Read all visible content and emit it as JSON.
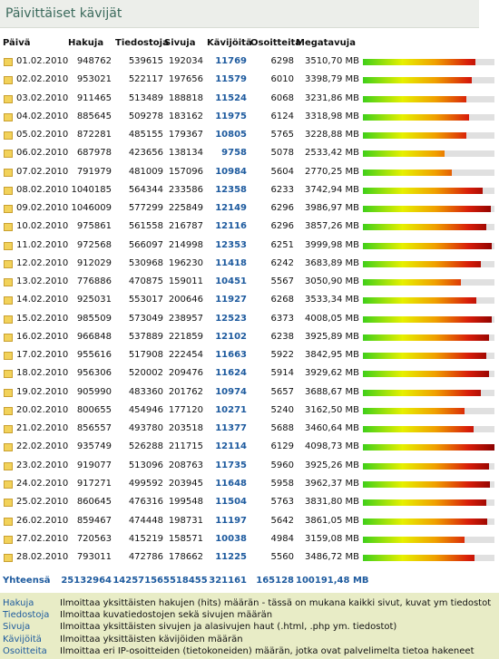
{
  "title": "Päivittäiset kävijät",
  "table": {
    "headers": [
      "Päivä",
      "Hakuja",
      "Tiedostoja",
      "Sivuja",
      "Kävijöitä",
      "Osoitteita",
      "Megatavuja"
    ],
    "rows": [
      [
        "01.02.2010",
        948762,
        539615,
        192034,
        11769,
        6298,
        "3510,70 MB"
      ],
      [
        "02.02.2010",
        953021,
        522117,
        197656,
        11579,
        6010,
        "3398,79 MB"
      ],
      [
        "03.02.2010",
        911465,
        513489,
        188818,
        11524,
        6068,
        "3231,86 MB"
      ],
      [
        "04.02.2010",
        885645,
        509278,
        183162,
        11975,
        6124,
        "3318,98 MB"
      ],
      [
        "05.02.2010",
        872281,
        485155,
        179367,
        10805,
        5765,
        "3228,88 MB"
      ],
      [
        "06.02.2010",
        687978,
        423656,
        138134,
        9758,
        5078,
        "2533,42 MB"
      ],
      [
        "07.02.2010",
        791979,
        481009,
        157096,
        10984,
        5604,
        "2770,25 MB"
      ],
      [
        "08.02.2010",
        1040185,
        564344,
        233586,
        12358,
        6233,
        "3742,94 MB"
      ],
      [
        "09.02.2010",
        1046009,
        577299,
        225849,
        12149,
        6296,
        "3986,97 MB"
      ],
      [
        "10.02.2010",
        975861,
        561558,
        216787,
        12116,
        6296,
        "3857,26 MB"
      ],
      [
        "11.02.2010",
        972568,
        566097,
        214998,
        12353,
        6251,
        "3999,98 MB"
      ],
      [
        "12.02.2010",
        912029,
        530968,
        196230,
        11418,
        6242,
        "3683,89 MB"
      ],
      [
        "13.02.2010",
        776886,
        470875,
        159011,
        10451,
        5567,
        "3050,90 MB"
      ],
      [
        "14.02.2010",
        925031,
        553017,
        200646,
        11927,
        6268,
        "3533,34 MB"
      ],
      [
        "15.02.2010",
        985509,
        573049,
        238957,
        12523,
        6373,
        "4008,05 MB"
      ],
      [
        "16.02.2010",
        966848,
        537889,
        221859,
        12102,
        6238,
        "3925,89 MB"
      ],
      [
        "17.02.2010",
        955616,
        517908,
        222454,
        11663,
        5922,
        "3842,95 MB"
      ],
      [
        "18.02.2010",
        956306,
        520002,
        209476,
        11624,
        5914,
        "3929,62 MB"
      ],
      [
        "19.02.2010",
        905990,
        483360,
        201762,
        10974,
        5657,
        "3688,67 MB"
      ],
      [
        "20.02.2010",
        800655,
        454946,
        177120,
        10271,
        5240,
        "3162,50 MB"
      ],
      [
        "21.02.2010",
        856557,
        493780,
        203518,
        11377,
        5688,
        "3460,64 MB"
      ],
      [
        "22.02.2010",
        935749,
        526288,
        211715,
        12114,
        6129,
        "4098,73 MB"
      ],
      [
        "23.02.2010",
        919077,
        513096,
        208763,
        11735,
        5960,
        "3925,26 MB"
      ],
      [
        "24.02.2010",
        917271,
        499592,
        203945,
        11648,
        5958,
        "3962,37 MB"
      ],
      [
        "25.02.2010",
        860645,
        476316,
        199548,
        11504,
        5763,
        "3831,80 MB"
      ],
      [
        "26.02.2010",
        859467,
        474448,
        198731,
        11197,
        5642,
        "3861,05 MB"
      ],
      [
        "27.02.2010",
        720563,
        415219,
        158571,
        10038,
        4984,
        "3159,08 MB"
      ],
      [
        "28.02.2010",
        793011,
        472786,
        178662,
        11225,
        5560,
        "3486,72 MB"
      ]
    ],
    "total": [
      "Yhteensä",
      25132964,
      14257156,
      5518455,
      321161,
      165128,
      "100191,48 MB"
    ]
  },
  "legend": [
    [
      "Hakuja",
      "Ilmoittaa yksittäisten hakujen (hits) määrän - tässä on mukana kaikki sivut, kuvat ym tiedostot"
    ],
    [
      "Tiedostoja",
      "Ilmoittaa kuvatiedostojen sekä sivujen määrän"
    ],
    [
      "Sivuja",
      "Ilmoittaa yksittäisten sivujen ja alasivujen haut (.html, .php ym. tiedostot)"
    ],
    [
      "Kävijöitä",
      "Ilmoittaa yksittäisten kävijöiden määrän"
    ],
    [
      "Osoitteita",
      "Ilmoittaa eri IP-osoitteiden (tietokoneiden) määrän, jotka ovat palvelimelta tietoa hakeneet"
    ]
  ]
}
